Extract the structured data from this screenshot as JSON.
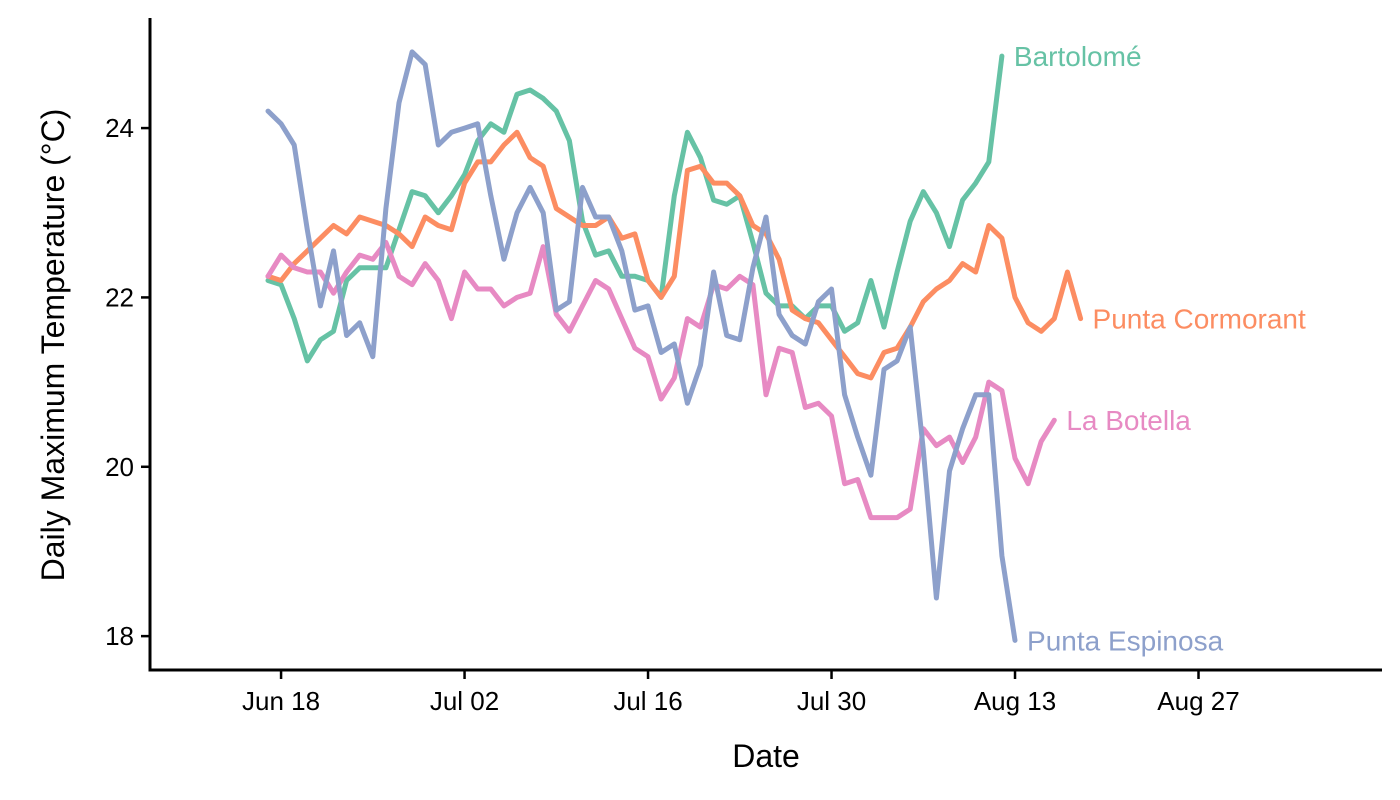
{
  "chart_data": {
    "type": "line",
    "title": "",
    "xlabel": "Date",
    "ylabel": "Daily Maximum Temperature   (°C)",
    "x_start": "Jun 17",
    "xlim": [
      "Jun 08",
      "Sep 10"
    ],
    "ylim": [
      17.6,
      25.3
    ],
    "x_ticks": [
      {
        "date": "Jun 18",
        "label": "Jun 18"
      },
      {
        "date": "Jul 02",
        "label": "Jul 02"
      },
      {
        "date": "Jul 16",
        "label": "Jul 16"
      },
      {
        "date": "Jul 30",
        "label": "Jul 30"
      },
      {
        "date": "Aug 13",
        "label": "Aug 13"
      },
      {
        "date": "Aug 27",
        "label": "Aug 27"
      }
    ],
    "y_ticks": [
      18,
      20,
      22,
      24
    ],
    "grid": false,
    "legend": "direct labels at line ends",
    "series": [
      {
        "name": "Bartolomé",
        "color": "#66c2a5",
        "values": [
          22.2,
          22.15,
          21.75,
          21.25,
          21.5,
          21.6,
          22.2,
          22.35,
          22.35,
          22.35,
          22.8,
          23.25,
          23.2,
          23.0,
          23.2,
          23.45,
          23.85,
          24.05,
          23.95,
          24.4,
          24.45,
          24.35,
          24.2,
          23.85,
          22.9,
          22.5,
          22.55,
          22.25,
          22.25,
          22.2,
          22.0,
          23.2,
          23.95,
          23.65,
          23.15,
          23.1,
          23.2,
          22.65,
          22.05,
          21.9,
          21.9,
          21.75,
          21.9,
          21.9,
          21.6,
          21.7,
          22.2,
          21.65,
          22.3,
          22.9,
          23.25,
          23.0,
          22.6,
          23.15,
          23.35,
          23.6,
          24.85
        ]
      },
      {
        "name": "Punta Cormorant",
        "color": "#fc8d62",
        "values": [
          22.25,
          22.2,
          22.4,
          22.55,
          22.7,
          22.85,
          22.75,
          22.95,
          22.9,
          22.85,
          22.75,
          22.6,
          22.95,
          22.85,
          22.8,
          23.35,
          23.6,
          23.6,
          23.8,
          23.95,
          23.65,
          23.55,
          23.05,
          22.95,
          22.85,
          22.85,
          22.95,
          22.7,
          22.75,
          22.2,
          22.0,
          22.25,
          23.5,
          23.55,
          23.35,
          23.35,
          23.2,
          22.85,
          22.75,
          22.45,
          21.85,
          21.75,
          21.7,
          21.5,
          21.3,
          21.1,
          21.05,
          21.35,
          21.4,
          21.65,
          21.95,
          22.1,
          22.2,
          22.4,
          22.3,
          22.85,
          22.7,
          22.0,
          21.7,
          21.6,
          21.75,
          22.3,
          21.75
        ]
      },
      {
        "name": "La Botella",
        "color": "#e78ac3",
        "values": [
          22.25,
          22.5,
          22.35,
          22.3,
          22.3,
          22.05,
          22.3,
          22.5,
          22.45,
          22.65,
          22.25,
          22.15,
          22.4,
          22.2,
          21.75,
          22.3,
          22.1,
          22.1,
          21.9,
          22.0,
          22.05,
          22.6,
          21.8,
          21.6,
          21.9,
          22.2,
          22.1,
          21.75,
          21.4,
          21.3,
          20.8,
          21.05,
          21.75,
          21.65,
          22.15,
          22.1,
          22.25,
          22.15,
          20.85,
          21.4,
          21.35,
          20.7,
          20.75,
          20.6,
          19.8,
          19.85,
          19.4,
          19.4,
          19.4,
          19.5,
          20.45,
          20.25,
          20.35,
          20.05,
          20.35,
          21.0,
          20.9,
          20.1,
          19.8,
          20.3,
          20.55
        ]
      },
      {
        "name": "Punta Espinosa",
        "color": "#8da0cb",
        "values": [
          24.2,
          24.05,
          23.8,
          22.8,
          21.9,
          22.55,
          21.55,
          21.7,
          21.3,
          23.05,
          24.3,
          24.9,
          24.75,
          23.8,
          23.95,
          24.0,
          24.05,
          23.2,
          22.45,
          23.0,
          23.3,
          23.0,
          21.85,
          21.95,
          23.3,
          22.95,
          22.95,
          22.55,
          21.85,
          21.9,
          21.35,
          21.45,
          20.75,
          21.2,
          22.3,
          21.55,
          21.5,
          22.35,
          22.95,
          21.8,
          21.55,
          21.45,
          21.95,
          22.1,
          20.85,
          20.35,
          19.9,
          21.15,
          21.25,
          21.65,
          20.2,
          18.45,
          19.95,
          20.45,
          20.85,
          20.85,
          18.95,
          17.95
        ]
      }
    ]
  }
}
